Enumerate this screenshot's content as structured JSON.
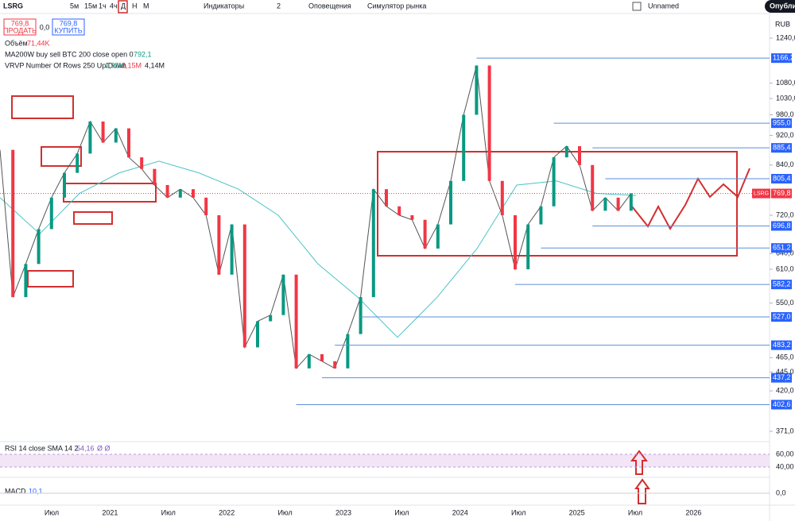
{
  "toolbar": {
    "symbol": "LSRG",
    "intervals": [
      "5м",
      "15м",
      "1ч",
      "4ч",
      "Д",
      "Н",
      "М"
    ],
    "indicators": "Индикаторы",
    "count": "2",
    "alerts": "Оповещения",
    "replay": "Симулятор рынка",
    "layout": "Unnamed",
    "publish": "Опубликовать"
  },
  "legend": {
    "sell_price": "769,8",
    "sell": "ПРОДАТЬ",
    "spread": "0,0",
    "buy_price": "769,8",
    "buy": "КУПИТЬ",
    "volume": "Объём",
    "volume_value": "71,44K",
    "ma": "MA200W buy sell BTC 200 close open 0",
    "ma_value": "792,1",
    "vrvp": "VRVP Number Of Rows 250 Up/Down",
    "vrvp_up": "1,98M",
    "vrvp_down": "2,15M",
    "vrvp_total": "4,14M",
    "rsi": "RSI 14 close SMA 14 2",
    "rsi_value": "54,16",
    "rsi_extra": "Ø Ø",
    "macd": "MACD",
    "macd_value": "10,1"
  },
  "price_axis": {
    "currency": "RUB",
    "log": true,
    "ylim": [
      371,
      1240
    ],
    "ticks": [
      {
        "value": 1240,
        "label": "1240,0"
      },
      {
        "value": 1080,
        "label": "1080,0"
      },
      {
        "value": 1030,
        "label": "1030,0"
      },
      {
        "value": 980,
        "label": "980,0"
      },
      {
        "value": 920,
        "label": "920,0"
      },
      {
        "value": 840,
        "label": "840,0"
      },
      {
        "value": 720,
        "label": "720,0"
      },
      {
        "value": 640,
        "label": "640,0"
      },
      {
        "value": 610,
        "label": "610,0"
      },
      {
        "value": 550,
        "label": "550,0"
      },
      {
        "value": 465,
        "label": "465,0"
      },
      {
        "value": 445,
        "label": "445,0"
      },
      {
        "value": 420,
        "label": "420,0"
      },
      {
        "value": 371,
        "label": "371,0"
      }
    ]
  },
  "levels": [
    {
      "value": 1166.2,
      "label": "1166,2",
      "from": 37
    },
    {
      "value": 955,
      "label": "955,0",
      "from": 43
    },
    {
      "value": 885.4,
      "label": "885,4",
      "from": 46
    },
    {
      "value": 805.4,
      "label": "805,4",
      "from": 47
    },
    {
      "value": 696.8,
      "label": "696,8",
      "from": 46
    },
    {
      "value": 651.2,
      "label": "651,2",
      "from": 42
    },
    {
      "value": 582.2,
      "label": "582,2",
      "from": 40
    },
    {
      "value": 527,
      "label": "527,0",
      "from": 28
    },
    {
      "value": 483.2,
      "label": "483,2",
      "from": 26
    },
    {
      "value": 437.2,
      "label": "437,2",
      "from": 25
    },
    {
      "value": 402.6,
      "label": "402,6",
      "from": 23
    }
  ],
  "current": {
    "symbol": "LSRG",
    "value": 769.8,
    "label": "769,8"
  },
  "price": [
    880,
    560,
    620,
    690,
    760,
    820,
    870,
    960,
    900,
    940,
    860,
    830,
    790,
    760,
    780,
    760,
    720,
    600,
    700,
    480,
    520,
    530,
    600,
    450,
    470,
    460,
    450,
    500,
    560,
    780,
    740,
    720,
    710,
    650,
    700,
    800,
    980,
    1140,
    800,
    720,
    610,
    700,
    740,
    860,
    890,
    840,
    730,
    760,
    730,
    770
  ],
  "ma": [
    760,
    680,
    770,
    820,
    850,
    820,
    780,
    720,
    620,
    560,
    495,
    560,
    650,
    790,
    800,
    770,
    765
  ],
  "rsi_axis": [
    {
      "value": 60,
      "label": "60,00"
    },
    {
      "value": 40,
      "label": "40,00"
    }
  ],
  "macd_axis": {
    "value": 0,
    "label": "0,0"
  },
  "time_axis": [
    "Июл",
    "2021",
    "Июл",
    "2022",
    "Июл",
    "2023",
    "Июл",
    "2024",
    "Июл",
    "2025",
    "Июл",
    "2026"
  ]
}
